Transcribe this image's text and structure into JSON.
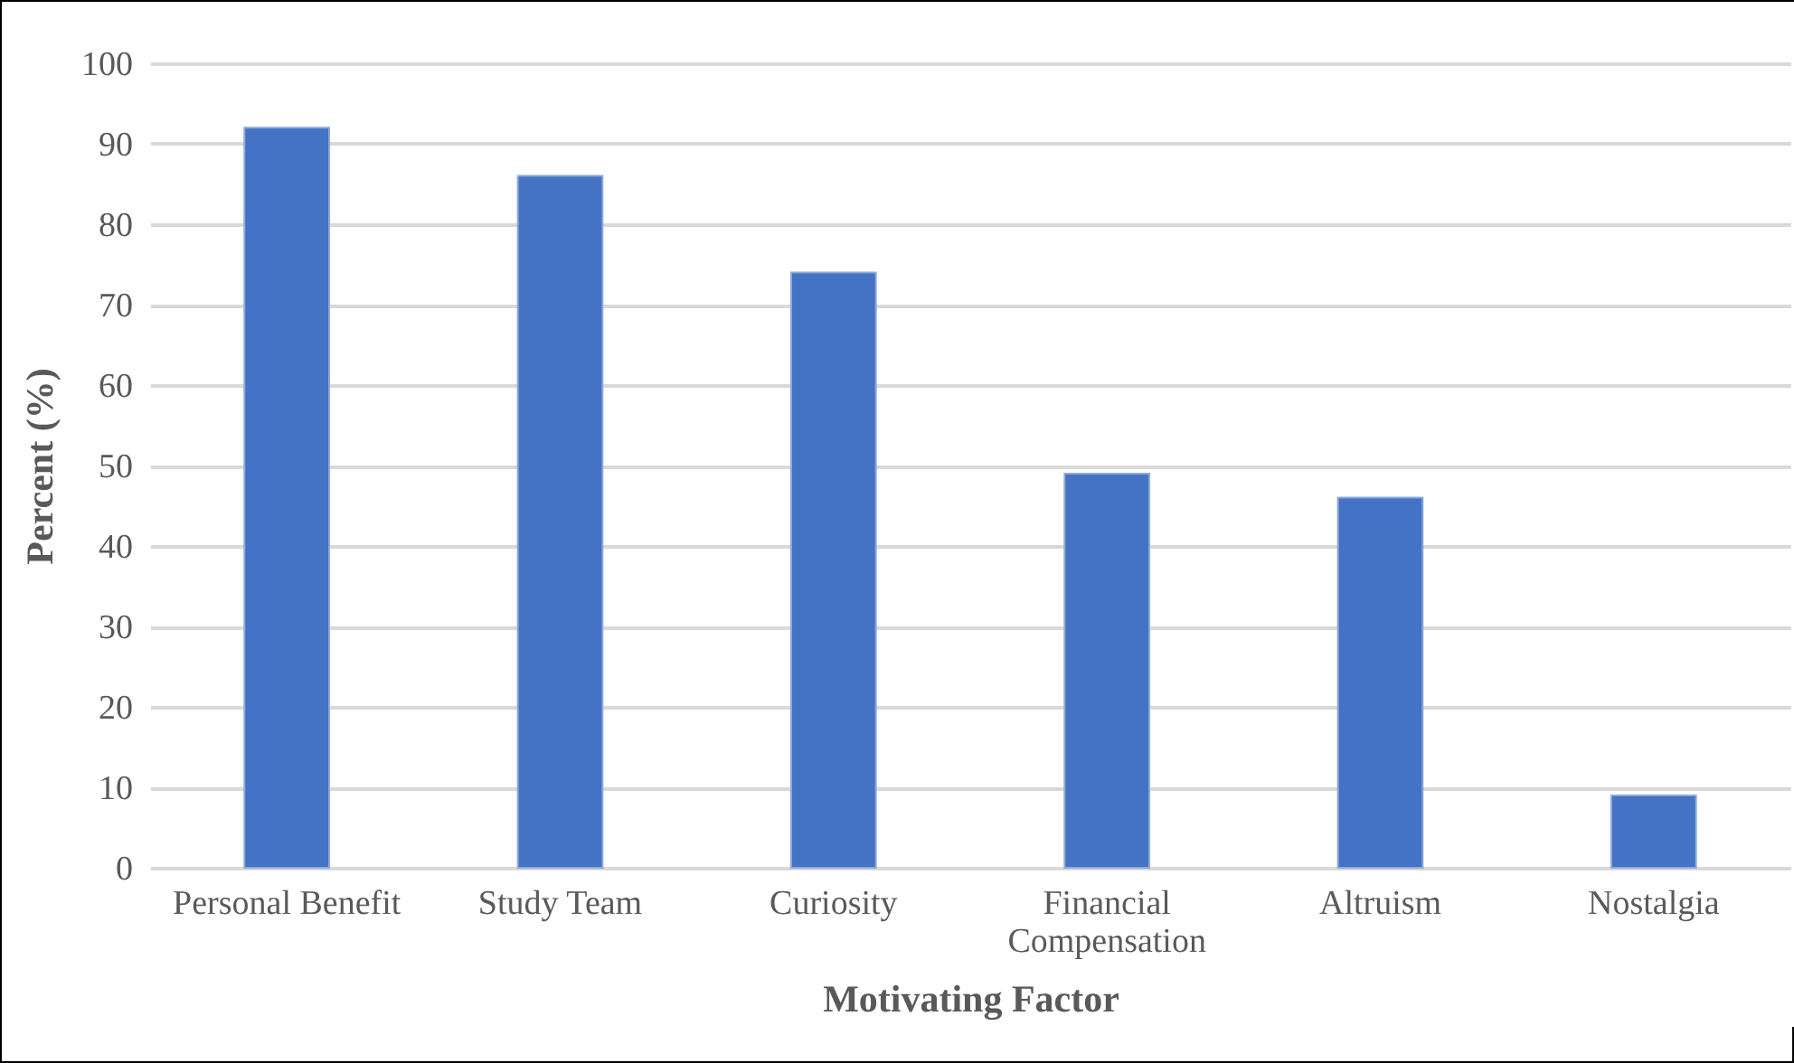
{
  "chart_data": {
    "type": "bar",
    "categories": [
      "Personal Benefit",
      "Study Team",
      "Curiosity",
      "Financial Compensation",
      "Altruism",
      "Nostalgia"
    ],
    "values": [
      92,
      86,
      74,
      49,
      46,
      9
    ],
    "color": "#4472c4",
    "xlabel": "Motivating Factor",
    "ylabel": "Percent (%)",
    "ylim": [
      0,
      100
    ],
    "yticks": [
      0,
      10,
      20,
      30,
      40,
      50,
      60,
      70,
      80,
      90,
      100
    ],
    "grid": "y"
  }
}
